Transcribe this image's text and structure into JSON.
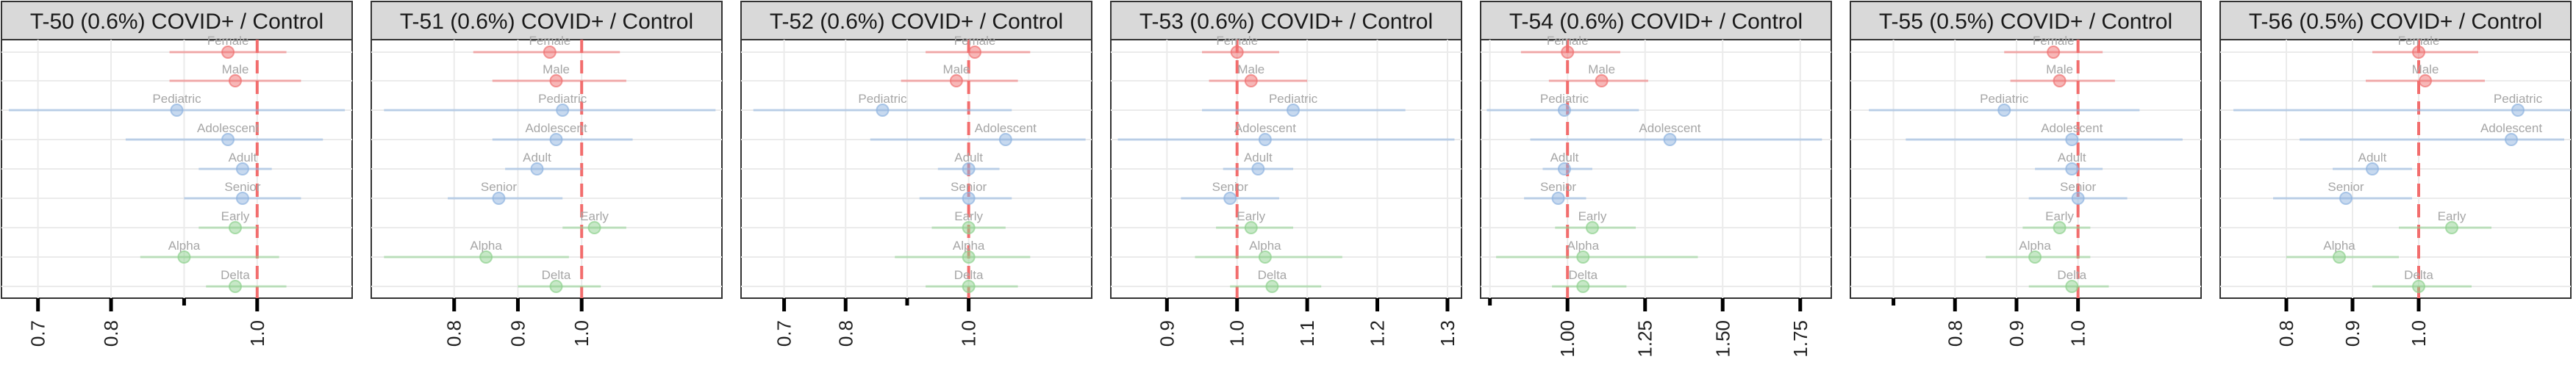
{
  "colors": {
    "Sex": "#f07070",
    "Age": "#8fb4e0",
    "Variant": "#8fd18f",
    "reference_line": "#f26d6d",
    "strip_background": "#d9d9d9"
  },
  "chart_data": [
    {
      "type": "scatter",
      "title": "T-50 (0.6%) COVID+ / Control",
      "xlim": [
        0.65,
        1.13
      ],
      "xticks": [
        0.7,
        0.8,
        1.0
      ],
      "minor_ticks": [
        0.9
      ],
      "reference": 1.0,
      "grid": true,
      "points": [
        {
          "label": "Female",
          "group": "Sex",
          "est": 0.96,
          "lo": 0.88,
          "hi": 1.04
        },
        {
          "label": "Male",
          "group": "Sex",
          "est": 0.97,
          "lo": 0.88,
          "hi": 1.06
        },
        {
          "label": "Pediatric",
          "group": "Age",
          "est": 0.89,
          "lo": 0.66,
          "hi": 1.12
        },
        {
          "label": "Adolescent",
          "group": "Age",
          "est": 0.96,
          "lo": 0.82,
          "hi": 1.09
        },
        {
          "label": "Adult",
          "group": "Age",
          "est": 0.98,
          "lo": 0.92,
          "hi": 1.02
        },
        {
          "label": "Senior",
          "group": "Age",
          "est": 0.98,
          "lo": 0.9,
          "hi": 1.06
        },
        {
          "label": "Early",
          "group": "Variant",
          "est": 0.97,
          "lo": 0.92,
          "hi": 1.0
        },
        {
          "label": "Alpha",
          "group": "Variant",
          "est": 0.9,
          "lo": 0.84,
          "hi": 1.03
        },
        {
          "label": "Delta",
          "group": "Variant",
          "est": 0.97,
          "lo": 0.93,
          "hi": 1.04
        }
      ]
    },
    {
      "type": "scatter",
      "title": "T-51 (0.6%) COVID+ / Control",
      "xlim": [
        0.67,
        1.22
      ],
      "xticks": [
        0.8,
        0.9,
        1.0
      ],
      "minor_ticks": [],
      "reference": 1.0,
      "grid": true,
      "points": [
        {
          "label": "Female",
          "group": "Sex",
          "est": 0.95,
          "lo": 0.83,
          "hi": 1.06
        },
        {
          "label": "Male",
          "group": "Sex",
          "est": 0.96,
          "lo": 0.86,
          "hi": 1.07
        },
        {
          "label": "Pediatric",
          "group": "Age",
          "est": 0.97,
          "lo": 0.69,
          "hi": 1.21
        },
        {
          "label": "Adolescent",
          "group": "Age",
          "est": 0.96,
          "lo": 0.86,
          "hi": 1.08
        },
        {
          "label": "Adult",
          "group": "Age",
          "est": 0.93,
          "lo": 0.88,
          "hi": 1.0
        },
        {
          "label": "Senior",
          "group": "Age",
          "est": 0.87,
          "lo": 0.79,
          "hi": 0.97
        },
        {
          "label": "Early",
          "group": "Variant",
          "est": 1.02,
          "lo": 0.97,
          "hi": 1.07
        },
        {
          "label": "Alpha",
          "group": "Variant",
          "est": 0.85,
          "lo": 0.69,
          "hi": 0.98
        },
        {
          "label": "Delta",
          "group": "Variant",
          "est": 0.96,
          "lo": 0.9,
          "hi": 1.03
        }
      ]
    },
    {
      "type": "scatter",
      "title": "T-52 (0.6%) COVID+ / Control",
      "xlim": [
        0.63,
        1.2
      ],
      "xticks": [
        0.7,
        0.8,
        1.0
      ],
      "minor_ticks": [
        0.9
      ],
      "reference": 1.0,
      "grid": true,
      "points": [
        {
          "label": "Female",
          "group": "Sex",
          "est": 1.01,
          "lo": 0.93,
          "hi": 1.1
        },
        {
          "label": "Male",
          "group": "Sex",
          "est": 0.98,
          "lo": 0.89,
          "hi": 1.08
        },
        {
          "label": "Pediatric",
          "group": "Age",
          "est": 0.86,
          "lo": 0.65,
          "hi": 1.07
        },
        {
          "label": "Adolescent",
          "group": "Age",
          "est": 1.06,
          "lo": 0.84,
          "hi": 1.19
        },
        {
          "label": "Adult",
          "group": "Age",
          "est": 1.0,
          "lo": 0.95,
          "hi": 1.05
        },
        {
          "label": "Senior",
          "group": "Age",
          "est": 1.0,
          "lo": 0.92,
          "hi": 1.07
        },
        {
          "label": "Early",
          "group": "Variant",
          "est": 1.0,
          "lo": 0.94,
          "hi": 1.06
        },
        {
          "label": "Alpha",
          "group": "Variant",
          "est": 1.0,
          "lo": 0.88,
          "hi": 1.1
        },
        {
          "label": "Delta",
          "group": "Variant",
          "est": 1.0,
          "lo": 0.93,
          "hi": 1.08
        }
      ]
    },
    {
      "type": "scatter",
      "title": "T-53 (0.6%) COVID+ / Control",
      "xlim": [
        0.82,
        1.32
      ],
      "xticks": [
        0.9,
        1.0,
        1.1,
        1.2,
        1.3
      ],
      "minor_ticks": [],
      "reference": 1.0,
      "grid": true,
      "points": [
        {
          "label": "Female",
          "group": "Sex",
          "est": 1.0,
          "lo": 0.95,
          "hi": 1.06
        },
        {
          "label": "Male",
          "group": "Sex",
          "est": 1.02,
          "lo": 0.96,
          "hi": 1.1
        },
        {
          "label": "Pediatric",
          "group": "Age",
          "est": 1.08,
          "lo": 0.95,
          "hi": 1.24
        },
        {
          "label": "Adolescent",
          "group": "Age",
          "est": 1.04,
          "lo": 0.83,
          "hi": 1.31
        },
        {
          "label": "Adult",
          "group": "Age",
          "est": 1.03,
          "lo": 0.98,
          "hi": 1.08
        },
        {
          "label": "Senior",
          "group": "Age",
          "est": 0.99,
          "lo": 0.92,
          "hi": 1.06
        },
        {
          "label": "Early",
          "group": "Variant",
          "est": 1.02,
          "lo": 0.97,
          "hi": 1.08
        },
        {
          "label": "Alpha",
          "group": "Variant",
          "est": 1.04,
          "lo": 0.94,
          "hi": 1.15
        },
        {
          "label": "Delta",
          "group": "Variant",
          "est": 1.05,
          "lo": 0.99,
          "hi": 1.12
        }
      ]
    },
    {
      "type": "scatter",
      "title": "T-54 (0.6%) COVID+ / Control",
      "xlim": [
        0.72,
        1.85
      ],
      "xticks": [
        1.0,
        1.25,
        1.5,
        1.75
      ],
      "minor_ticks": [
        0.75
      ],
      "reference": 1.0,
      "grid": true,
      "points": [
        {
          "label": "Female",
          "group": "Sex",
          "est": 1.0,
          "lo": 0.85,
          "hi": 1.17
        },
        {
          "label": "Male",
          "group": "Sex",
          "est": 1.11,
          "lo": 0.94,
          "hi": 1.26
        },
        {
          "label": "Pediatric",
          "group": "Age",
          "est": 0.99,
          "lo": 0.74,
          "hi": 1.23
        },
        {
          "label": "Adolescent",
          "group": "Age",
          "est": 1.33,
          "lo": 0.88,
          "hi": 1.82
        },
        {
          "label": "Adult",
          "group": "Age",
          "est": 0.99,
          "lo": 0.92,
          "hi": 1.08
        },
        {
          "label": "Senior",
          "group": "Age",
          "est": 0.97,
          "lo": 0.86,
          "hi": 1.06
        },
        {
          "label": "Early",
          "group": "Variant",
          "est": 1.08,
          "lo": 0.96,
          "hi": 1.22
        },
        {
          "label": "Alpha",
          "group": "Variant",
          "est": 1.05,
          "lo": 0.77,
          "hi": 1.42
        },
        {
          "label": "Delta",
          "group": "Variant",
          "est": 1.05,
          "lo": 0.95,
          "hi": 1.19
        }
      ]
    },
    {
      "type": "scatter",
      "title": "T-55 (0.5%) COVID+ / Control",
      "xlim": [
        0.63,
        1.2
      ],
      "xticks": [
        0.8,
        0.9,
        1.0
      ],
      "minor_ticks": [
        0.7
      ],
      "reference": 1.0,
      "grid": true,
      "points": [
        {
          "label": "Female",
          "group": "Sex",
          "est": 0.96,
          "lo": 0.88,
          "hi": 1.04
        },
        {
          "label": "Male",
          "group": "Sex",
          "est": 0.97,
          "lo": 0.89,
          "hi": 1.06
        },
        {
          "label": "Pediatric",
          "group": "Age",
          "est": 0.88,
          "lo": 0.66,
          "hi": 1.1
        },
        {
          "label": "Adolescent",
          "group": "Age",
          "est": 0.99,
          "lo": 0.72,
          "hi": 1.17
        },
        {
          "label": "Adult",
          "group": "Age",
          "est": 0.99,
          "lo": 0.93,
          "hi": 1.04
        },
        {
          "label": "Senior",
          "group": "Age",
          "est": 1.0,
          "lo": 0.92,
          "hi": 1.08
        },
        {
          "label": "Early",
          "group": "Variant",
          "est": 0.97,
          "lo": 0.91,
          "hi": 1.02
        },
        {
          "label": "Alpha",
          "group": "Variant",
          "est": 0.93,
          "lo": 0.85,
          "hi": 1.02
        },
        {
          "label": "Delta",
          "group": "Variant",
          "est": 0.99,
          "lo": 0.92,
          "hi": 1.05
        }
      ]
    },
    {
      "type": "scatter",
      "title": "T-56 (0.5%) COVID+ / Control",
      "xlim": [
        0.7,
        1.23
      ],
      "xticks": [
        0.8,
        0.9,
        1.0
      ],
      "minor_ticks": [],
      "reference": 1.0,
      "grid": true,
      "points": [
        {
          "label": "Female",
          "group": "Sex",
          "est": 1.0,
          "lo": 0.93,
          "hi": 1.09
        },
        {
          "label": "Male",
          "group": "Sex",
          "est": 1.01,
          "lo": 0.92,
          "hi": 1.1
        },
        {
          "label": "Pediatric",
          "group": "Age",
          "est": 1.15,
          "lo": 0.72,
          "hi": 1.23
        },
        {
          "label": "Adolescent",
          "group": "Age",
          "est": 1.14,
          "lo": 0.82,
          "hi": 1.22
        },
        {
          "label": "Adult",
          "group": "Age",
          "est": 0.93,
          "lo": 0.87,
          "hi": 0.99
        },
        {
          "label": "Senior",
          "group": "Age",
          "est": 0.89,
          "lo": 0.78,
          "hi": 0.99
        },
        {
          "label": "Early",
          "group": "Variant",
          "est": 1.05,
          "lo": 0.97,
          "hi": 1.11
        },
        {
          "label": "Alpha",
          "group": "Variant",
          "est": 0.88,
          "lo": 0.8,
          "hi": 0.97
        },
        {
          "label": "Delta",
          "group": "Variant",
          "est": 1.0,
          "lo": 0.93,
          "hi": 1.08
        }
      ]
    }
  ]
}
